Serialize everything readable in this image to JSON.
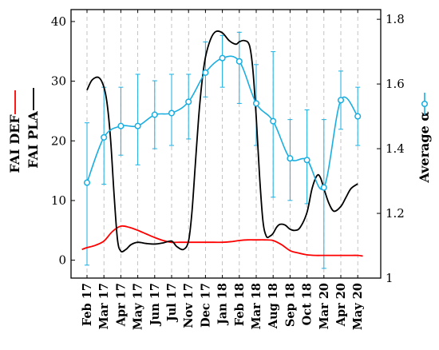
{
  "chart_data": {
    "type": "line",
    "categories": [
      "Feb 17",
      "Mar 17",
      "Apr 17",
      "May 17",
      "Jun 17",
      "Jul 17",
      "Nov 17",
      "Dec 17",
      "Jan 18",
      "Feb 18",
      "Mar 18",
      "Aug 18",
      "Sep 18",
      "Oct 18",
      "Mar 20",
      "Apr 20",
      "May 20"
    ],
    "y_left": {
      "label_def": "FAI DEF",
      "label_pla": "FAI PLA",
      "range": [
        -3,
        42
      ],
      "ticks": [
        0,
        10,
        20,
        30,
        40
      ]
    },
    "y_right": {
      "label": "Average α",
      "range": [
        1,
        1.83
      ],
      "ticks": [
        1,
        1.2,
        1.4,
        1.6,
        1.8
      ]
    },
    "series": [
      {
        "name": "FAI DEF",
        "axis": "left",
        "color": "#ff0000",
        "x": [
          -0.3,
          0,
          0.5,
          1,
          1.5,
          2,
          2.5,
          3,
          3.5,
          4,
          4.5,
          5,
          5.5,
          6,
          6.5,
          7,
          7.5,
          8,
          8.5,
          9,
          9.5,
          10,
          10.5,
          11,
          11.5,
          12,
          12.5,
          13,
          13.5,
          14,
          14.5,
          15,
          15.5,
          16,
          16.3
        ],
        "values": [
          1.8,
          2.1,
          2.5,
          3.2,
          4.8,
          5.7,
          5.5,
          5.0,
          4.4,
          3.8,
          3.3,
          3.0,
          3.0,
          3.0,
          3.0,
          3.0,
          3.0,
          3.0,
          3.1,
          3.3,
          3.4,
          3.4,
          3.4,
          3.3,
          2.6,
          1.6,
          1.2,
          0.9,
          0.8,
          0.8,
          0.8,
          0.8,
          0.8,
          0.8,
          0.7
        ]
      },
      {
        "name": "FAI PLA",
        "axis": "left",
        "color": "#000000",
        "x": [
          0,
          0.3,
          0.7,
          1,
          1.2,
          1.4,
          1.6,
          1.8,
          2,
          2.3,
          2.6,
          3,
          3.5,
          4,
          4.5,
          5,
          5.3,
          5.7,
          6,
          6.2,
          6.4,
          6.6,
          6.8,
          7,
          7.3,
          7.6,
          8,
          8.4,
          8.8,
          9,
          9.3,
          9.6,
          9.8,
          10,
          10.2,
          10.4,
          10.6,
          10.8,
          11,
          11.2,
          11.4,
          11.7,
          12,
          12.3,
          12.6,
          13,
          13.3,
          13.6,
          13.8,
          14,
          14.3,
          14.6,
          15,
          15.3,
          15.6,
          16
        ],
        "values": [
          28.5,
          30.2,
          30.6,
          29.0,
          26.0,
          20.0,
          11.0,
          3.5,
          1.5,
          1.8,
          2.6,
          3.0,
          2.8,
          2.7,
          2.9,
          3.2,
          2.3,
          1.8,
          3.2,
          8.0,
          16.0,
          24.0,
          30.0,
          34.0,
          37.0,
          38.3,
          38.1,
          36.8,
          36.2,
          36.6,
          36.8,
          36.0,
          32.0,
          24.0,
          14.0,
          6.5,
          4.0,
          4.0,
          4.5,
          5.5,
          6.0,
          5.9,
          5.2,
          5.0,
          5.5,
          8.0,
          12.0,
          14.2,
          13.8,
          12.0,
          9.5,
          8.2,
          9.0,
          10.5,
          12.0,
          12.8
        ]
      },
      {
        "name": "Average α",
        "axis": "right",
        "color": "#1aaee0",
        "x": [
          0,
          1,
          2,
          3,
          4,
          5,
          6,
          7,
          8,
          9,
          10,
          11,
          12,
          13,
          14,
          15,
          16
        ],
        "values": [
          1.295,
          1.435,
          1.47,
          1.47,
          1.505,
          1.51,
          1.545,
          1.635,
          1.68,
          1.67,
          1.54,
          1.485,
          1.37,
          1.365,
          1.28,
          1.55,
          1.5
        ],
        "error_low": [
          1.04,
          1.29,
          1.38,
          1.35,
          1.4,
          1.41,
          1.43,
          1.56,
          1.59,
          1.54,
          1.41,
          1.25,
          1.24,
          1.23,
          1.03,
          1.46,
          1.41
        ],
        "error_high": [
          1.48,
          1.59,
          1.59,
          1.63,
          1.61,
          1.63,
          1.63,
          1.73,
          1.75,
          1.76,
          1.66,
          1.7,
          1.49,
          1.52,
          1.49,
          1.64,
          1.59
        ]
      }
    ]
  }
}
